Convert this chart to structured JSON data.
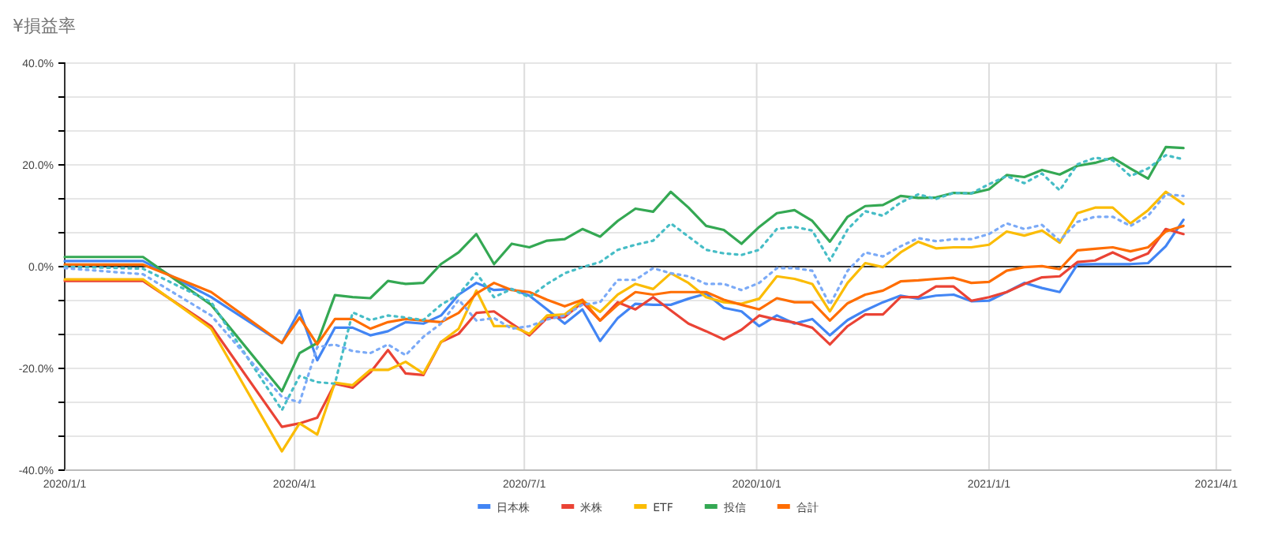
{
  "chart_data": {
    "type": "line",
    "title": "¥損益率",
    "x": [
      "2020-01-01",
      "2020-02-01",
      "2020-02-28",
      "2020-03-27",
      "2020-04-03",
      "2020-04-10",
      "2020-04-17",
      "2020-04-24",
      "2020-05-01",
      "2020-05-08",
      "2020-05-15",
      "2020-05-22",
      "2020-05-29",
      "2020-06-05",
      "2020-06-12",
      "2020-06-19",
      "2020-06-26",
      "2020-07-03",
      "2020-07-10",
      "2020-07-17",
      "2020-07-24",
      "2020-07-31",
      "2020-08-07",
      "2020-08-14",
      "2020-08-21",
      "2020-08-28",
      "2020-09-04",
      "2020-09-11",
      "2020-09-18",
      "2020-09-25",
      "2020-10-02",
      "2020-10-09",
      "2020-10-16",
      "2020-10-23",
      "2020-10-30",
      "2020-11-06",
      "2020-11-13",
      "2020-11-20",
      "2020-11-27",
      "2020-12-04",
      "2020-12-11",
      "2020-12-18",
      "2020-12-25",
      "2021-01-01",
      "2021-01-08",
      "2021-01-15",
      "2021-01-22",
      "2021-01-29",
      "2021-02-05",
      "2021-02-12",
      "2021-02-19",
      "2021-02-26",
      "2021-03-05",
      "2021-03-12",
      "2021-03-19"
    ],
    "series": [
      {
        "name": "日本株",
        "color": "#4285f4",
        "values": [
          1.1,
          1.1,
          -6,
          -15,
          -8.6,
          -18.4,
          -12,
          -12,
          -13.5,
          -12.7,
          -10.9,
          -11.2,
          -9.6,
          -5.5,
          -3.2,
          -4.6,
          -4.4,
          -5.7,
          -8.4,
          -11.2,
          -8.4,
          -14.6,
          -10.1,
          -7.3,
          -7.5,
          -7.5,
          -6.3,
          -5.3,
          -8.1,
          -8.8,
          -11.7,
          -9.6,
          -11.2,
          -10.3,
          -13.5,
          -10.5,
          -8.6,
          -7.0,
          -5.7,
          -6.3,
          -5.7,
          -5.5,
          -6.8,
          -6.7,
          -5.0,
          -3.2,
          -4.2,
          -5.0,
          0.4,
          0.5,
          0.5,
          0.5,
          0.7,
          4.0,
          9.2
        ]
      },
      {
        "name": "米株",
        "color": "#ea4335",
        "values": [
          -2.8,
          -2.8,
          -11.7,
          -31.5,
          -30.8,
          -29.7,
          -23,
          -23.8,
          -20.8,
          -16.4,
          -21,
          -21.3,
          -14.8,
          -13.2,
          -9.1,
          -8.8,
          -11.2,
          -13.5,
          -10.1,
          -9.9,
          -7.0,
          -10.6,
          -7.0,
          -8.4,
          -6.0,
          -8.6,
          -11.2,
          -12.7,
          -14.3,
          -12.4,
          -9.6,
          -10.4,
          -11.0,
          -12.0,
          -15.3,
          -11.7,
          -9.4,
          -9.4,
          -6.0,
          -6.0,
          -3.9,
          -3.9,
          -6.7,
          -6.0,
          -5.0,
          -3.4,
          -2.1,
          -1.9,
          0.9,
          1.2,
          2.8,
          1.2,
          2.6,
          7.4,
          6.4
        ]
      },
      {
        "name": "ETF",
        "color": "#fbbc04",
        "values": [
          -2.5,
          -2.5,
          -12.2,
          -36.3,
          -30.8,
          -33,
          -22.8,
          -23.3,
          -20.3,
          -20.3,
          -18.7,
          -21.0,
          -14.8,
          -12.2,
          -4.7,
          -11.7,
          -11.7,
          -13.2,
          -9.6,
          -9.4,
          -6.7,
          -8.9,
          -5.5,
          -3.4,
          -4.4,
          -1.3,
          -3.2,
          -6.0,
          -7.0,
          -7.3,
          -6.3,
          -1.9,
          -2.4,
          -3.4,
          -8.8,
          -3.2,
          0.7,
          -0.1,
          2.8,
          4.9,
          3.6,
          3.8,
          3.8,
          4.3,
          6.9,
          6.1,
          7.1,
          4.7,
          10.5,
          11.6,
          11.6,
          8.5,
          11.1,
          14.7,
          12.3
        ]
      },
      {
        "name": "投信",
        "color": "#34a853",
        "values": [
          1.9,
          1.9,
          -7.5,
          -24.5,
          -17,
          -15,
          -5.6,
          -6.0,
          -6.2,
          -2.8,
          -3.4,
          -3.2,
          0.5,
          2.8,
          6.4,
          0.5,
          4.5,
          3.8,
          5.1,
          5.4,
          7.4,
          5.9,
          9.0,
          11.4,
          10.8,
          14.7,
          11.6,
          8.0,
          7.2,
          4.5,
          7.8,
          10.5,
          11.1,
          9.0,
          4.9,
          9.8,
          11.9,
          12.1,
          13.9,
          13.5,
          13.6,
          14.5,
          14.4,
          15.2,
          18.0,
          17.6,
          19.0,
          18.1,
          19.8,
          20.4,
          21.4,
          19.3,
          17.3,
          23.5,
          23.3
        ]
      },
      {
        "name": "合計",
        "color": "#ff6d01",
        "values": [
          0.4,
          0.4,
          -5,
          -15,
          -10,
          -15.3,
          -10.3,
          -10.3,
          -12.2,
          -10.9,
          -10.3,
          -10.6,
          -10.9,
          -9.1,
          -5.3,
          -3.2,
          -4.6,
          -5.0,
          -6.5,
          -7.8,
          -6.5,
          -10.6,
          -7.5,
          -5.0,
          -5.5,
          -5.0,
          -5.0,
          -5.0,
          -6.5,
          -7.5,
          -8.4,
          -6.2,
          -7.0,
          -7.0,
          -10.6,
          -7.2,
          -5.5,
          -4.7,
          -2.9,
          -2.7,
          -2.4,
          -2.2,
          -3.2,
          -3.0,
          -0.8,
          -0.1,
          0.1,
          -0.5,
          3.2,
          3.5,
          3.8,
          3.0,
          3.8,
          6.9,
          8.0
        ]
      },
      {
        "color": "#46bdc6",
        "line_style": "dotted",
        "values": [
          0,
          -0.4,
          -7,
          -28.2,
          -21.5,
          -22.7,
          -23,
          -9,
          -10.5,
          -9.6,
          -10,
          -10.5,
          -7.5,
          -5.5,
          -1.3,
          -6.0,
          -4.4,
          -6.0,
          -3.4,
          -1.3,
          -0.1,
          0.9,
          3.3,
          4.3,
          5.1,
          8.5,
          5.9,
          3.3,
          2.6,
          2.3,
          3.3,
          7.4,
          7.8,
          7.1,
          1.2,
          7.3,
          10.9,
          10.0,
          12.6,
          14.2,
          13.3,
          14.5,
          14.4,
          16.2,
          17.8,
          16.4,
          18.3,
          15.0,
          20.1,
          21.4,
          20.9,
          17.8,
          19.3,
          21.9,
          21.1
        ]
      },
      {
        "color": "#7baaf7",
        "line_style": "dotted",
        "values": [
          -0.3,
          -1.5,
          -9.6,
          -25.6,
          -26.7,
          -15.8,
          -15.3,
          -16.6,
          -17,
          -15.3,
          -17.4,
          -13.8,
          -11.2,
          -6.5,
          -10.6,
          -10.1,
          -12.2,
          -11.7,
          -10.4,
          -9.6,
          -7.5,
          -7.0,
          -2.6,
          -2.6,
          -0.3,
          -1.3,
          -1.9,
          -3.4,
          -3.4,
          -4.6,
          -3.2,
          -0.3,
          -0.3,
          -0.8,
          -7.5,
          -0.8,
          2.8,
          2.0,
          4.0,
          5.6,
          5.0,
          5.4,
          5.4,
          6.4,
          8.5,
          7.4,
          8.2,
          5.1,
          8.8,
          9.8,
          9.8,
          8.0,
          10.0,
          14.2,
          13.9
        ]
      }
    ],
    "xlim": [
      "2020-01-01",
      "2021-04-07"
    ],
    "xticks": [
      {
        "value": "2020-01-01",
        "label": "2020/1/1"
      },
      {
        "value": "2020-04-01",
        "label": "2020/4/1"
      },
      {
        "value": "2020-07-01",
        "label": "2020/7/1"
      },
      {
        "value": "2020-10-01",
        "label": "2020/10/1"
      },
      {
        "value": "2021-01-01",
        "label": "2021/1/1"
      },
      {
        "value": "2021-04-01",
        "label": "2021/4/1"
      }
    ],
    "ylim": [
      -40,
      40
    ],
    "yticks": [
      {
        "value": 40,
        "label": "40.0%"
      },
      {
        "value": 33.333,
        "label": null
      },
      {
        "value": 26.667,
        "label": null
      },
      {
        "value": 20,
        "label": "20.0%"
      },
      {
        "value": 13.333,
        "label": null
      },
      {
        "value": 6.667,
        "label": null
      },
      {
        "value": 0,
        "label": "0.0%"
      },
      {
        "value": -6.667,
        "label": null
      },
      {
        "value": -13.333,
        "label": null
      },
      {
        "value": -20,
        "label": "-20.0%"
      },
      {
        "value": -26.667,
        "label": null
      },
      {
        "value": -33.333,
        "label": null
      },
      {
        "value": -40,
        "label": "-40.0%"
      }
    ],
    "ref_lines": [
      {
        "axis": "y",
        "value": 0,
        "color": "#333333"
      }
    ],
    "grid": true,
    "legend": "bottom",
    "line_style": "solid"
  }
}
